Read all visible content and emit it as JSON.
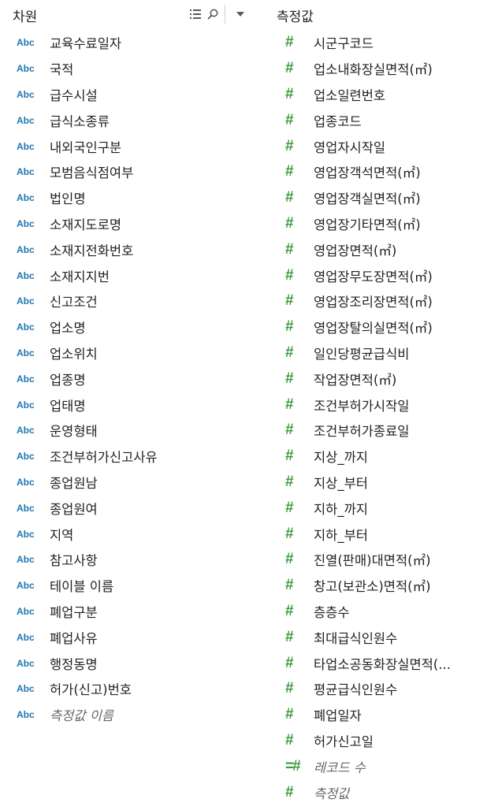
{
  "dimensions": {
    "title": "차원",
    "items": [
      {
        "type": "Abc",
        "label": "교육수료일자"
      },
      {
        "type": "Abc",
        "label": "국적"
      },
      {
        "type": "Abc",
        "label": "급수시설"
      },
      {
        "type": "Abc",
        "label": "급식소종류"
      },
      {
        "type": "Abc",
        "label": "내외국인구분"
      },
      {
        "type": "Abc",
        "label": "모범음식점여부"
      },
      {
        "type": "Abc",
        "label": "법인명"
      },
      {
        "type": "Abc",
        "label": "소재지도로명"
      },
      {
        "type": "Abc",
        "label": "소재지전화번호"
      },
      {
        "type": "Abc",
        "label": "소재지지번"
      },
      {
        "type": "Abc",
        "label": "신고조건"
      },
      {
        "type": "Abc",
        "label": "업소명"
      },
      {
        "type": "Abc",
        "label": "업소위치"
      },
      {
        "type": "Abc",
        "label": "업종명"
      },
      {
        "type": "Abc",
        "label": "업태명"
      },
      {
        "type": "Abc",
        "label": "운영형태"
      },
      {
        "type": "Abc",
        "label": "조건부허가신고사유"
      },
      {
        "type": "Abc",
        "label": "종업원남"
      },
      {
        "type": "Abc",
        "label": "종업원여"
      },
      {
        "type": "Abc",
        "label": "지역"
      },
      {
        "type": "Abc",
        "label": "참고사항"
      },
      {
        "type": "Abc",
        "label": "테이블 이름"
      },
      {
        "type": "Abc",
        "label": "폐업구분"
      },
      {
        "type": "Abc",
        "label": "폐업사유"
      },
      {
        "type": "Abc",
        "label": "행정동명"
      },
      {
        "type": "Abc",
        "label": "허가(신고)번호"
      },
      {
        "type": "Abc",
        "label": "측정값 이름",
        "italic": true
      }
    ]
  },
  "measures": {
    "title": "측정값",
    "items": [
      {
        "type": "#",
        "label": "시군구코드"
      },
      {
        "type": "#",
        "label": "업소내화장실면적(㎡)"
      },
      {
        "type": "#",
        "label": "업소일련번호"
      },
      {
        "type": "#",
        "label": "업종코드"
      },
      {
        "type": "#",
        "label": "영업자시작일"
      },
      {
        "type": "#",
        "label": "영업장객석면적(㎡)"
      },
      {
        "type": "#",
        "label": "영업장객실면적(㎡)"
      },
      {
        "type": "#",
        "label": "영업장기타면적(㎡)"
      },
      {
        "type": "#",
        "label": "영업장면적(㎡)"
      },
      {
        "type": "#",
        "label": "영업장무도장면적(㎡)"
      },
      {
        "type": "#",
        "label": "영업장조리장면적(㎡)"
      },
      {
        "type": "#",
        "label": "영업장탈의실면적(㎡)"
      },
      {
        "type": "#",
        "label": "일인당평균급식비"
      },
      {
        "type": "#",
        "label": "작업장면적(㎡)"
      },
      {
        "type": "#",
        "label": "조건부허가시작일"
      },
      {
        "type": "#",
        "label": "조건부허가종료일"
      },
      {
        "type": "#",
        "label": "지상_까지"
      },
      {
        "type": "#",
        "label": "지상_부터"
      },
      {
        "type": "#",
        "label": "지하_까지"
      },
      {
        "type": "#",
        "label": "지하_부터"
      },
      {
        "type": "#",
        "label": "진열(판매)대면적(㎡)"
      },
      {
        "type": "#",
        "label": "창고(보관소)면적(㎡)"
      },
      {
        "type": "#",
        "label": "층층수"
      },
      {
        "type": "#",
        "label": "최대급식인원수"
      },
      {
        "type": "#",
        "label": "타업소공동화장실면적(..."
      },
      {
        "type": "#",
        "label": "평균급식인원수"
      },
      {
        "type": "#",
        "label": "폐업일자"
      },
      {
        "type": "#",
        "label": "허가신고일"
      },
      {
        "type": "=#",
        "label": "레코드 수",
        "italic": true
      },
      {
        "type": "#",
        "label": "측정값",
        "italic": true
      }
    ]
  },
  "toolbar": {
    "icons": [
      "grid-view-icon",
      "search-icon",
      "chevron-down-icon"
    ]
  },
  "colors": {
    "dimension_badge": "#1f77b4",
    "measure_badge": "#3e9a3e"
  }
}
